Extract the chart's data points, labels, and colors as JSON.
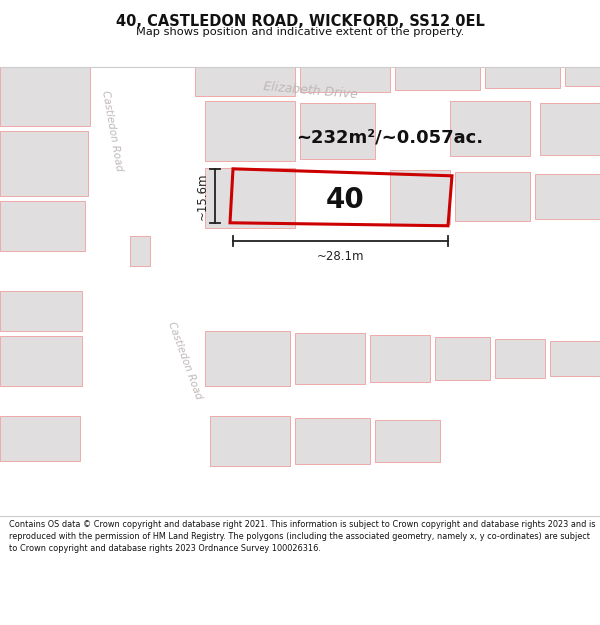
{
  "title": "40, CASTLEDON ROAD, WICKFORD, SS12 0EL",
  "subtitle": "Map shows position and indicative extent of the property.",
  "area_text": "~232m²/~0.057ac.",
  "property_number": "40",
  "dim_width": "~28.1m",
  "dim_height": "~15.6m",
  "footer": "Contains OS data © Crown copyright and database right 2021. This information is subject to Crown copyright and database rights 2023 and is reproduced with the permission of HM Land Registry. The polygons (including the associated geometry, namely x, y co-ordinates) are subject to Crown copyright and database rights 2023 Ordnance Survey 100026316.",
  "bg_color": "#ffffff",
  "map_bg": "#f5f2f2",
  "road_color": "#ffffff",
  "building_color": "#e0dede",
  "pink_line_color": "#f0a8a8",
  "property_outline_color": "#cc0000",
  "dimension_color": "#222222",
  "title_color": "#111111",
  "road_label_color": "#c0b8b8",
  "footer_color": "#111111"
}
